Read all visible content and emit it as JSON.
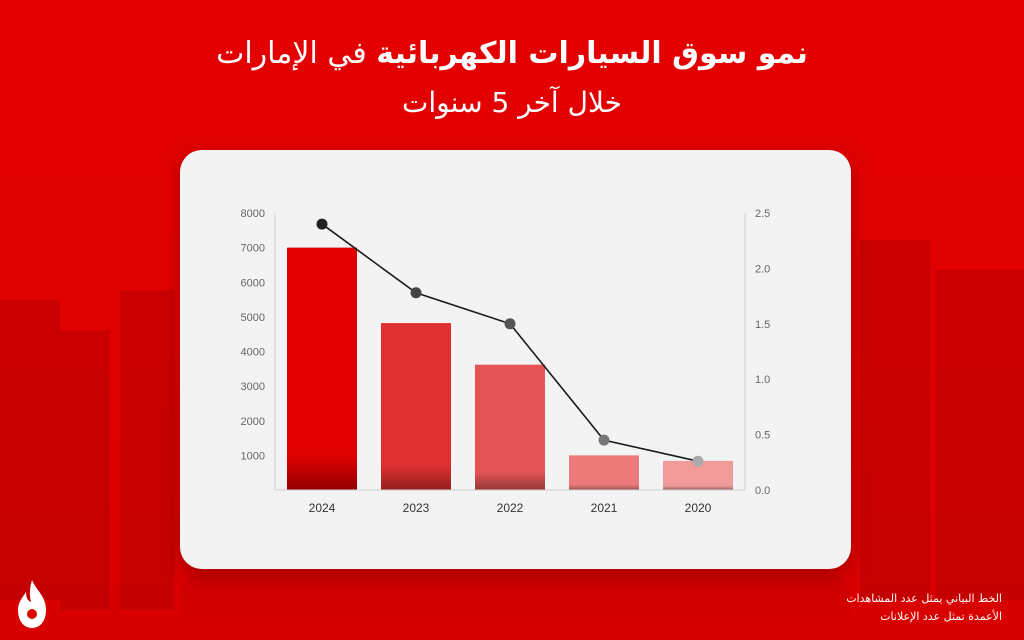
{
  "header": {
    "title_bold": "نمو سوق السيارات الكهربائية",
    "title_rest": "في الإمارات",
    "subtitle": "خلال آخر 5 سنوات"
  },
  "footer": {
    "line1": "الخط البياني يمثل عدد المشاهدات",
    "line2": "الأعمدة تمثل عدد الإعلانات"
  },
  "logo": {
    "icon": "flame-logo-icon"
  },
  "colors": {
    "background": "#e30000",
    "card": "#f3f3f3",
    "line": "#1a1a1a"
  },
  "chart_data": {
    "type": "bar",
    "categories": [
      "2024",
      "2023",
      "2022",
      "2021",
      "2020"
    ],
    "series": [
      {
        "values": [
          7000,
          4820,
          3620,
          1000,
          840
        ],
        "colors": [
          "#e30000",
          "#e03030",
          "#e65555",
          "#ec7a7a",
          "#f09a9a"
        ],
        "axis": "left"
      },
      {
        "values": [
          2.4,
          1.78,
          1.5,
          0.45,
          0.26
        ],
        "type": "line",
        "marker_colors": [
          "#222222",
          "#444444",
          "#555555",
          "#777777",
          "#aaaaaa"
        ],
        "axis": "right"
      }
    ],
    "y_left": {
      "ylim": [
        0,
        8000
      ],
      "ticks": [
        1000,
        2000,
        3000,
        4000,
        5000,
        6000,
        7000,
        8000
      ]
    },
    "y_right": {
      "ylim": [
        0,
        2.5
      ],
      "ticks": [
        "0.0",
        "0.5",
        "1.0",
        "1.5",
        "2.0",
        "2.5"
      ]
    },
    "grid": false
  }
}
